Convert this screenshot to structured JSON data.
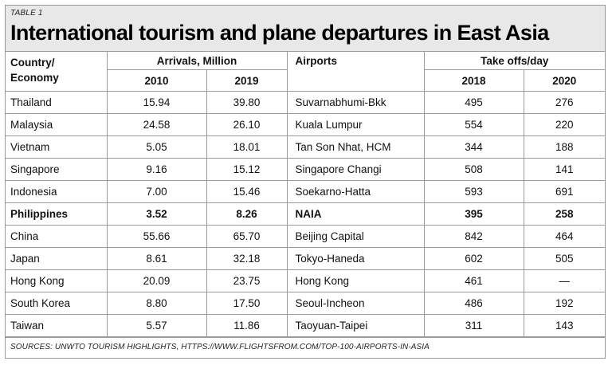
{
  "table_label": "TABLE 1",
  "title": "International tourism and plane departures in East Asia",
  "headers": {
    "country_line1": "Country/",
    "country_line2": "Economy",
    "arrivals": "Arrivals, Million",
    "arrivals_year1": "2010",
    "arrivals_year2": "2019",
    "airports": "Airports",
    "takeoffs": "Take offs/day",
    "takeoffs_year1": "2018",
    "takeoffs_year2": "2020"
  },
  "rows": [
    {
      "country": "Thailand",
      "a2010": "15.94",
      "a2019": "39.80",
      "airport": "Suvarnabhumi-Bkk",
      "t2018": "495",
      "t2020": "276",
      "bold": false
    },
    {
      "country": "Malaysia",
      "a2010": "24.58",
      "a2019": "26.10",
      "airport": "Kuala Lumpur",
      "t2018": "554",
      "t2020": "220",
      "bold": false
    },
    {
      "country": "Vietnam",
      "a2010": "5.05",
      "a2019": "18.01",
      "airport": "Tan Son Nhat, HCM",
      "t2018": "344",
      "t2020": "188",
      "bold": false
    },
    {
      "country": "Singapore",
      "a2010": "9.16",
      "a2019": "15.12",
      "airport": "Singapore Changi",
      "t2018": "508",
      "t2020": "141",
      "bold": false
    },
    {
      "country": "Indonesia",
      "a2010": "7.00",
      "a2019": "15.46",
      "airport": "Soekarno-Hatta",
      "t2018": "593",
      "t2020": "691",
      "bold": false
    },
    {
      "country": "Philippines",
      "a2010": "3.52",
      "a2019": "8.26",
      "airport": "NAIA",
      "t2018": "395",
      "t2020": "258",
      "bold": true
    },
    {
      "country": "China",
      "a2010": "55.66",
      "a2019": "65.70",
      "airport": "Beijing Capital",
      "t2018": "842",
      "t2020": "464",
      "bold": false
    },
    {
      "country": "Japan",
      "a2010": "8.61",
      "a2019": "32.18",
      "airport": "Tokyo-Haneda",
      "t2018": "602",
      "t2020": "505",
      "bold": false
    },
    {
      "country": "Hong Kong",
      "a2010": "20.09",
      "a2019": "23.75",
      "airport": "Hong Kong",
      "t2018": "461",
      "t2020": "—",
      "bold": false
    },
    {
      "country": "South Korea",
      "a2010": "8.80",
      "a2019": "17.50",
      "airport": "Seoul-Incheon",
      "t2018": "486",
      "t2020": "192",
      "bold": false
    },
    {
      "country": "Taiwan",
      "a2010": "5.57",
      "a2019": "11.86",
      "airport": "Taoyuan-Taipei",
      "t2018": "311",
      "t2020": "143",
      "bold": false
    }
  ],
  "sources": "SOURCES: UNWTO TOURISM HIGHLIGHTS, HTTPS://WWW.FLIGHTSFROM.COM/TOP-100-AIRPORTS-IN-ASIA"
}
